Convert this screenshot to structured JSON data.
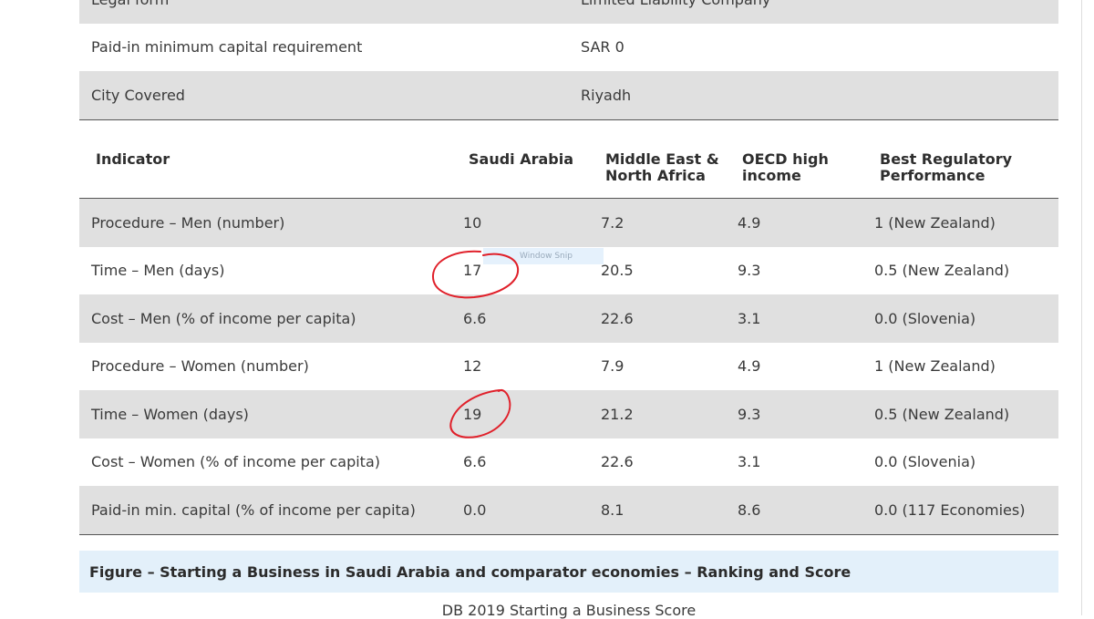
{
  "top_info": [
    {
      "label": "Legal form",
      "value": "Limited Liability Company"
    },
    {
      "label": "Paid-in minimum capital requirement",
      "value": "SAR 0"
    },
    {
      "label": "City Covered",
      "value": "Riyadh"
    }
  ],
  "table": {
    "headers": {
      "indicator": "Indicator",
      "saudi": "Saudi Arabia",
      "mena_line1": "Middle East &",
      "mena_line2": "North Africa",
      "oecd_line1": "OECD high",
      "oecd_line2": "income",
      "best_line1": "Best Regulatory",
      "best_line2": "Performance"
    },
    "rows": [
      {
        "indicator": "Procedure – Men (number)",
        "saudi": "10",
        "mena": "7.2",
        "oecd": "4.9",
        "best": "1 (New Zealand)"
      },
      {
        "indicator": "Time – Men (days)",
        "saudi": "17",
        "mena": "20.5",
        "oecd": "9.3",
        "best": "0.5 (New Zealand)"
      },
      {
        "indicator": "Cost – Men (% of income per capita)",
        "saudi": "6.6",
        "mena": "22.6",
        "oecd": "3.1",
        "best": "0.0 (Slovenia)"
      },
      {
        "indicator": "Procedure – Women (number)",
        "saudi": "12",
        "mena": "7.9",
        "oecd": "4.9",
        "best": "1 (New Zealand)"
      },
      {
        "indicator": "Time – Women (days)",
        "saudi": "19",
        "mena": "21.2",
        "oecd": "9.3",
        "best": "0.5 (New Zealand)"
      },
      {
        "indicator": "Cost – Women (% of income per capita)",
        "saudi": "6.6",
        "mena": "22.6",
        "oecd": "3.1",
        "best": "0.0 (Slovenia)"
      },
      {
        "indicator": "Paid-in min. capital (% of income per capita)",
        "saudi": "0.0",
        "mena": "8.1",
        "oecd": "8.6",
        "best": "0.0 (117 Economies)"
      }
    ]
  },
  "snip_overlay_text": "Window Snip",
  "figure_caption": "Figure – Starting a Business in Saudi Arabia and comparator economies – Ranking and Score",
  "chart_title": "DB 2019 Starting a Business Score",
  "colors": {
    "row_gray": "#e0e0e0",
    "caption_bg": "#e3f0fa",
    "annotation_red": "#e0202a"
  }
}
